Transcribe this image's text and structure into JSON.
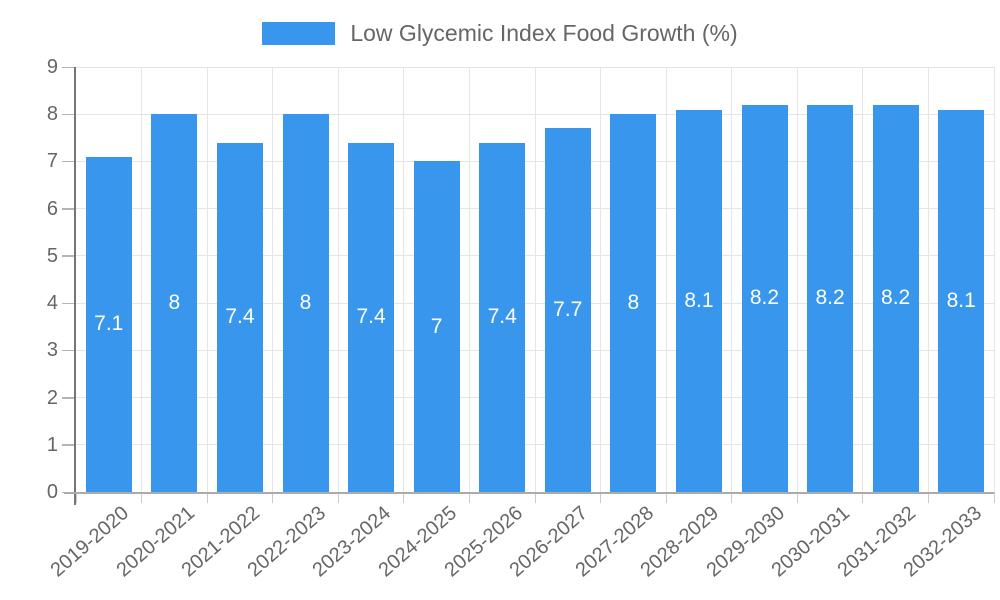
{
  "legend": {
    "label": "Low Glycemic Index Food Growth (%)"
  },
  "chart_data": {
    "type": "bar",
    "title": "Low Glycemic Index Food Growth (%)",
    "xlabel": "",
    "ylabel": "",
    "categories": [
      "2019-2020",
      "2020-2021",
      "2021-2022",
      "2022-2023",
      "2023-2024",
      "2024-2025",
      "2025-2026",
      "2026-2027",
      "2027-2028",
      "2028-2029",
      "2029-2030",
      "2030-2031",
      "2031-2032",
      "2032-2033"
    ],
    "values": [
      7.1,
      8,
      7.4,
      8,
      7.4,
      7,
      7.4,
      7.7,
      8,
      8.1,
      8.2,
      8.2,
      8.2,
      8.1
    ],
    "series_name": "Low Glycemic Index Food Growth (%)",
    "ylim": [
      0,
      9
    ],
    "yticks": [
      0,
      1,
      2,
      3,
      4,
      5,
      6,
      7,
      8,
      9
    ],
    "grid": true,
    "legend_position": "top",
    "bar_value_labels": "inside-center",
    "colors": {
      "bar": "#3897ec",
      "bar_label_text": "#ffffff",
      "axis_text": "#666666",
      "legend_text": "#666666",
      "gridline": "#e5e5e5",
      "y_axis_line": "#757575",
      "x_axis_line": "#ababab",
      "y_tick_mark": "#b4b4b4",
      "x_tick_mark": "#cccccc",
      "background": "#ffffff"
    }
  }
}
